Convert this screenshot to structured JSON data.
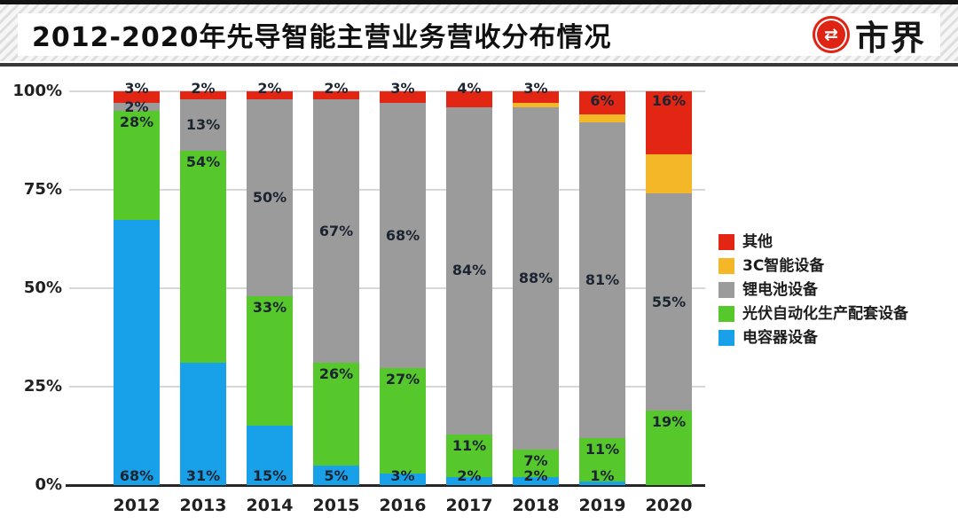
{
  "header": {
    "title": "2012-2020年先导智能主营业务营收分布情况",
    "logo_text": "市界",
    "logo_icon": "transfer-arrows-icon",
    "logo_glyph": "⇄",
    "logo_color": "#e02414"
  },
  "chart_data": {
    "type": "bar",
    "variant": "stacked-percentage",
    "title": "2012-2020年先导智能主营业务营收分布情况",
    "categories": [
      "2012",
      "2013",
      "2014",
      "2015",
      "2016",
      "2017",
      "2018",
      "2019",
      "2020"
    ],
    "y_ticks": [
      "100%",
      "75%",
      "50%",
      "25%",
      "0%"
    ],
    "ylim": [
      0,
      100
    ],
    "grid": true,
    "legend_position": "right",
    "series": [
      {
        "name": "电容器设备",
        "color": "#18a0e8",
        "values": [
          68,
          31,
          15,
          5,
          3,
          2,
          2,
          1,
          0
        ],
        "labels": [
          "68%",
          "31%",
          "15%",
          "5%",
          "3%",
          "2%",
          "2%",
          "1%",
          ""
        ]
      },
      {
        "name": "光伏自动化生产配套设备",
        "color": "#57c82c",
        "values": [
          28,
          54,
          33,
          26,
          27,
          11,
          7,
          11,
          19
        ],
        "labels": [
          "28%",
          "54%",
          "33%",
          "26%",
          "27%",
          "11%",
          "7%",
          "11%",
          "19%"
        ]
      },
      {
        "name": "锂电池设备",
        "color": "#9b9b9b",
        "values": [
          2,
          13,
          50,
          67,
          68,
          84,
          88,
          81,
          55
        ],
        "labels": [
          "2%",
          "13%",
          "50%",
          "67%",
          "68%",
          "84%",
          "88%",
          "81%",
          "55%"
        ]
      },
      {
        "name": "3C智能设备",
        "color": "#f4b727",
        "values": [
          0,
          0,
          0,
          0,
          0,
          0,
          1,
          2,
          10
        ],
        "labels": [
          "",
          "",
          "",
          "",
          "",
          "",
          "",
          "",
          ""
        ]
      },
      {
        "name": "其他",
        "color": "#e32614",
        "values": [
          3,
          2,
          2,
          2,
          3,
          4,
          3,
          6,
          16
        ],
        "labels": [
          "3%",
          "2%",
          "2%",
          "2%",
          "3%",
          "4%",
          "3%",
          "6%",
          "16%"
        ]
      }
    ],
    "legend": [
      {
        "label": "其他",
        "color": "#e32614"
      },
      {
        "label": "3C智能设备",
        "color": "#f4b727"
      },
      {
        "label": "锂电池设备",
        "color": "#9b9b9b"
      },
      {
        "label": "光伏自动化生产配套设备",
        "color": "#57c82c"
      },
      {
        "label": "电容器设备",
        "color": "#18a0e8"
      }
    ]
  }
}
